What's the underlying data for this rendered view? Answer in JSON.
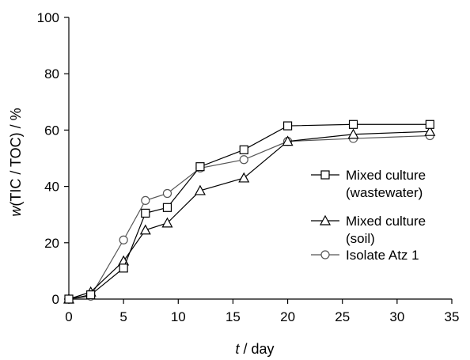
{
  "chart_data": {
    "type": "line",
    "xlabel": {
      "italic": "t",
      "rest": " / day"
    },
    "ylabel": {
      "italic": "w",
      "rest": "(TIC / TOC) / %"
    },
    "xlim": [
      0,
      35
    ],
    "ylim": [
      0,
      100
    ],
    "xticks": [
      0,
      5,
      10,
      15,
      20,
      25,
      30,
      35
    ],
    "yticks": [
      0,
      20,
      40,
      60,
      80,
      100
    ],
    "grid": false,
    "legend_position": "right",
    "series": [
      {
        "name_lines": [
          "Mixed culture",
          "(wastewater)"
        ],
        "marker": "square",
        "color": "#000000",
        "x": [
          0,
          2,
          5,
          7,
          9,
          12,
          16,
          20,
          26,
          33
        ],
        "y": [
          0,
          1.5,
          11,
          30.5,
          32.5,
          47,
          53,
          61.5,
          62,
          62
        ]
      },
      {
        "name_lines": [
          "Mixed culture",
          "(soil)"
        ],
        "marker": "triangle",
        "color": "#000000",
        "x": [
          0,
          2,
          5,
          7,
          9,
          12,
          16,
          20,
          26,
          33
        ],
        "y": [
          0,
          2.5,
          13.5,
          24.5,
          27,
          38.5,
          43,
          56,
          58.5,
          59.5
        ]
      },
      {
        "name_lines": [
          "Isolate Atz 1"
        ],
        "marker": "circle",
        "color": "#555555",
        "x": [
          0,
          2,
          5,
          7,
          9,
          12,
          16,
          20,
          26,
          33
        ],
        "y": [
          0,
          1,
          21,
          35,
          37.5,
          46.5,
          49.5,
          56,
          57,
          58
        ]
      }
    ]
  }
}
